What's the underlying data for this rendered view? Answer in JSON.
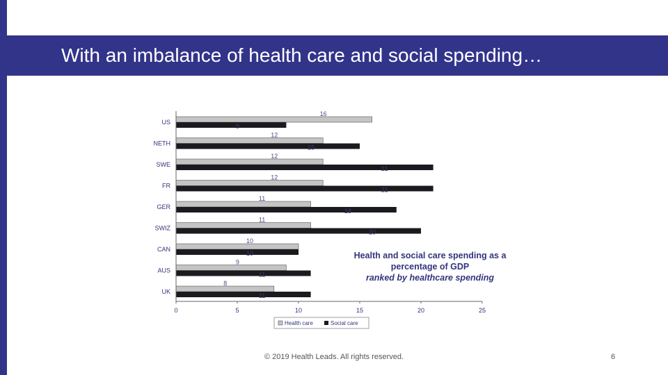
{
  "slide": {
    "title": "With an imbalance of health care and social spending…",
    "footer": "© 2019 Health Leads. All rights reserved.",
    "page_number": "6"
  },
  "colors": {
    "accent": "#32348a",
    "health_care": "#c4c4c4",
    "social_care": "#1b1b1f",
    "text": "#33347d"
  },
  "chart_data": {
    "type": "bar",
    "orientation": "horizontal",
    "categories": [
      "US",
      "NETH",
      "SWE",
      "FR",
      "GER",
      "SWIZ",
      "CAN",
      "AUS",
      "UK"
    ],
    "series": [
      {
        "name": "Health care",
        "values": [
          16,
          12,
          12,
          12,
          11,
          11,
          10,
          9,
          8
        ]
      },
      {
        "name": "Social care",
        "values": [
          9,
          15,
          21,
          21,
          18,
          20,
          10,
          11,
          11
        ]
      }
    ],
    "xlim": [
      0,
      25
    ],
    "xticks": [
      0,
      5,
      10,
      15,
      20,
      25
    ],
    "grid": false,
    "legend": "bottom",
    "annotation": {
      "line1": "Health and social care spending as a",
      "line2": "percentage of GDP",
      "line3": "ranked by healthcare spending"
    }
  }
}
